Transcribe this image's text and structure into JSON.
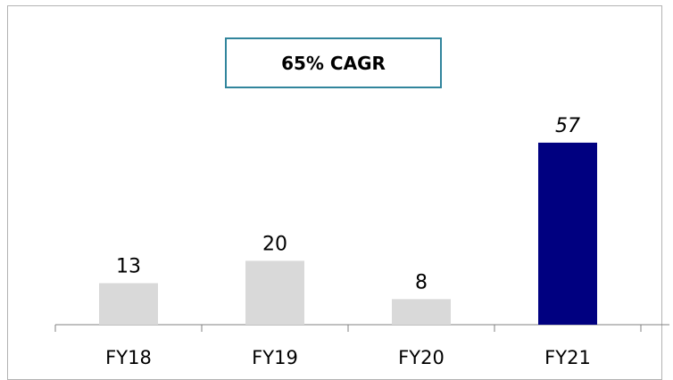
{
  "annotation": {
    "cagr_text": "65% CAGR"
  },
  "chart_data": {
    "type": "bar",
    "categories": [
      "FY18",
      "FY19",
      "FY20",
      "FY21"
    ],
    "values": [
      13,
      20,
      8,
      57
    ],
    "data_labels": [
      "13",
      "20",
      "8",
      "57"
    ],
    "highlight_index": 3,
    "colors": {
      "default": "#d9d9d9",
      "highlight": "#000080",
      "axis": "#808080",
      "annotation_border": "#31859c"
    },
    "ylim": [
      0,
      65
    ],
    "grid": false,
    "legend": "none",
    "title": "",
    "xlabel": "",
    "ylabel": ""
  }
}
